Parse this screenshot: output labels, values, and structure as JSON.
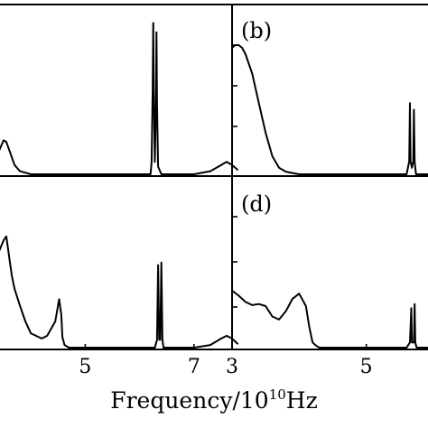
{
  "chart_data": [
    {
      "type": "line",
      "panel": "",
      "xlim": [
        3.4,
        7.7
      ],
      "ylim": [
        0,
        1
      ],
      "xticks": [],
      "series": [
        {
          "x": [
            3.4,
            3.5,
            3.55,
            3.6,
            3.7,
            3.8,
            3.9,
            4.0,
            4.2,
            4.5,
            5.0,
            5.5,
            6.0,
            6.2,
            6.22,
            6.24,
            6.25,
            6.26,
            6.28,
            6.3,
            6.31,
            6.32,
            6.34,
            6.4,
            6.6,
            7.0,
            7.3,
            7.5,
            7.6,
            7.7,
            7.8
          ],
          "y": [
            0.14,
            0.22,
            0.21,
            0.16,
            0.06,
            0.02,
            0.01,
            0.0,
            0.0,
            0.0,
            0.0,
            0.0,
            0.0,
            0.0,
            0.08,
            0.55,
            0.98,
            0.55,
            0.08,
            0.45,
            0.92,
            0.45,
            0.05,
            0.0,
            0.0,
            0.0,
            0.02,
            0.06,
            0.08,
            0.06,
            0.03
          ]
        }
      ]
    },
    {
      "type": "line",
      "panel": "(b)",
      "xlim": [
        3.0,
        6.0
      ],
      "ylim": [
        0,
        1
      ],
      "xticks": [],
      "series": [
        {
          "x": [
            3.0,
            3.05,
            3.1,
            3.15,
            3.2,
            3.3,
            3.4,
            3.5,
            3.6,
            3.7,
            3.8,
            3.9,
            4.0,
            4.2,
            5.0,
            5.6,
            5.64,
            5.65,
            5.66,
            5.68,
            5.7,
            5.71,
            5.72,
            5.74,
            5.8,
            6.0
          ],
          "y": [
            0.98,
            1.0,
            1.0,
            0.98,
            0.93,
            0.78,
            0.55,
            0.32,
            0.14,
            0.05,
            0.02,
            0.01,
            0.0,
            0.0,
            0.0,
            0.0,
            0.1,
            0.55,
            0.1,
            0.05,
            0.1,
            0.5,
            0.1,
            0.0,
            0.0,
            0.0
          ]
        }
      ]
    },
    {
      "type": "line",
      "panel": "",
      "xlim": [
        3.4,
        7.7
      ],
      "ylim": [
        0,
        1
      ],
      "xticks": [
        "5",
        "7"
      ],
      "series": [
        {
          "x": [
            3.4,
            3.5,
            3.55,
            3.6,
            3.65,
            3.7,
            3.8,
            3.9,
            4.0,
            4.2,
            4.3,
            4.45,
            4.52,
            4.56,
            4.58,
            4.62,
            4.7,
            4.9,
            5.5,
            6.2,
            6.28,
            6.32,
            6.34,
            6.36,
            6.38,
            6.4,
            6.42,
            6.44,
            6.5,
            7.0,
            7.3,
            7.5,
            7.6,
            7.7,
            7.8
          ],
          "y": [
            0.72,
            0.82,
            0.85,
            0.7,
            0.55,
            0.45,
            0.32,
            0.2,
            0.11,
            0.07,
            0.09,
            0.2,
            0.37,
            0.25,
            0.08,
            0.02,
            0.0,
            0.0,
            0.0,
            0.0,
            0.0,
            0.06,
            0.63,
            0.06,
            0.06,
            0.65,
            0.06,
            0.0,
            0.0,
            0.0,
            0.02,
            0.07,
            0.09,
            0.07,
            0.03
          ]
        }
      ]
    },
    {
      "type": "line",
      "panel": "(d)",
      "xlim": [
        3.0,
        6.0
      ],
      "ylim": [
        0,
        1
      ],
      "xticks": [
        "3",
        "5"
      ],
      "series": [
        {
          "x": [
            3.0,
            3.1,
            3.2,
            3.3,
            3.4,
            3.5,
            3.6,
            3.7,
            3.8,
            3.9,
            4.0,
            4.1,
            4.15,
            4.2,
            4.25,
            4.3,
            4.35,
            4.4,
            4.5,
            4.6,
            4.8,
            5.0,
            5.6,
            5.65,
            5.67,
            5.68,
            5.69,
            5.71,
            5.72,
            5.73,
            5.75,
            5.8,
            6.0
          ],
          "y": [
            0.55,
            0.5,
            0.44,
            0.41,
            0.42,
            0.4,
            0.3,
            0.27,
            0.35,
            0.47,
            0.52,
            0.4,
            0.2,
            0.05,
            0.02,
            0.0,
            0.0,
            0.0,
            0.0,
            0.0,
            0.0,
            0.0,
            0.0,
            0.05,
            0.38,
            0.05,
            0.05,
            0.05,
            0.42,
            0.05,
            0.0,
            0.0,
            0.0
          ]
        }
      ]
    }
  ],
  "axis_label": {
    "prefix": "Frequency/10",
    "exponent": "10",
    "unit": "Hz"
  }
}
